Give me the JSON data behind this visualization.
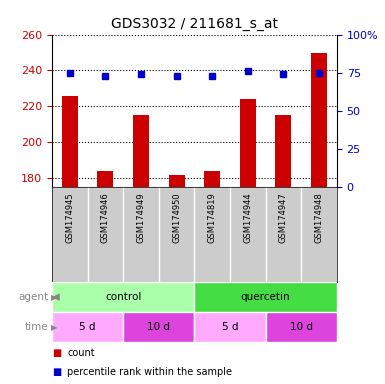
{
  "title": "GDS3032 / 211681_s_at",
  "samples": [
    "GSM174945",
    "GSM174946",
    "GSM174949",
    "GSM174950",
    "GSM174819",
    "GSM174944",
    "GSM174947",
    "GSM174948"
  ],
  "counts": [
    226,
    184,
    215,
    182,
    184,
    224,
    215,
    250
  ],
  "percentiles": [
    75,
    73,
    74,
    73,
    73,
    76,
    74,
    75
  ],
  "ylim_left": [
    175,
    260
  ],
  "ylim_right": [
    0,
    100
  ],
  "yticks_left": [
    180,
    200,
    220,
    240,
    260
  ],
  "yticks_right": [
    0,
    25,
    50,
    75,
    100
  ],
  "bar_color": "#cc0000",
  "dot_color": "#0000cc",
  "agent_groups": [
    {
      "label": "control",
      "start": 0,
      "end": 3,
      "color": "#aaffaa"
    },
    {
      "label": "quercetin",
      "start": 4,
      "end": 7,
      "color": "#44dd44"
    }
  ],
  "time_groups": [
    {
      "label": "5 d",
      "start": 0,
      "end": 1,
      "color": "#ffaaff"
    },
    {
      "label": "10 d",
      "start": 2,
      "end": 3,
      "color": "#dd44dd"
    },
    {
      "label": "5 d",
      "start": 4,
      "end": 5,
      "color": "#ffaaff"
    },
    {
      "label": "10 d",
      "start": 6,
      "end": 7,
      "color": "#dd44dd"
    }
  ],
  "grid_color": "#000000",
  "tick_label_color_left": "#cc0000",
  "tick_label_color_right": "#0000cc",
  "bg_color": "#ffffff",
  "sample_bg_color": "#cccccc",
  "legend_count_color": "#cc0000",
  "legend_pct_color": "#0000cc",
  "spine_color": "#000000"
}
